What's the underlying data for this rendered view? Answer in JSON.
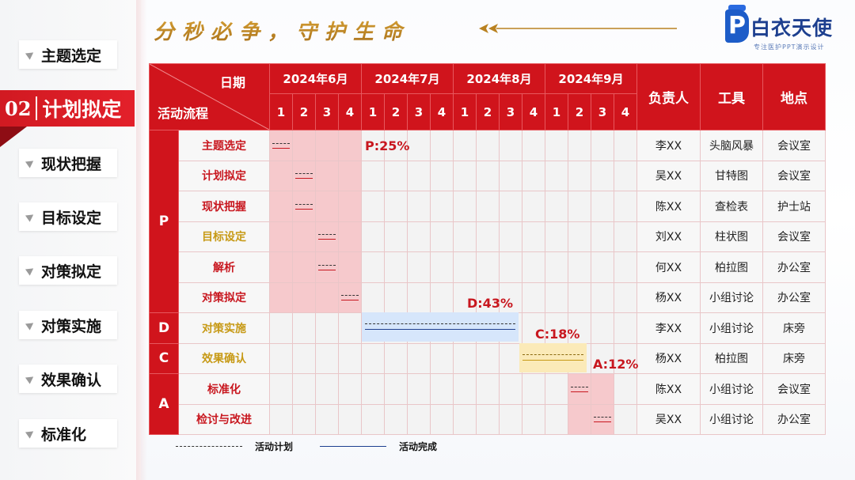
{
  "header": {
    "slogan": "分秒必争，守护生命",
    "logo_mark": "P",
    "logo_name": "白衣天使",
    "logo_tagline": "专注医护PPT演示设计"
  },
  "sidebar": {
    "items": [
      {
        "label": "主题选定"
      },
      {
        "label": "计划拟定",
        "number": "02",
        "active": true
      },
      {
        "label": "现状把握"
      },
      {
        "label": "目标设定"
      },
      {
        "label": "对策拟定"
      },
      {
        "label": "对策实施"
      },
      {
        "label": "效果确认"
      },
      {
        "label": "标准化"
      }
    ]
  },
  "gantt": {
    "corner_date": "日期",
    "corner_flow": "活动流程",
    "months": [
      "2024年6月",
      "2024年7月",
      "2024年8月",
      "2024年9月"
    ],
    "weeks": [
      "1",
      "2",
      "3",
      "4"
    ],
    "columns": [
      "负责人",
      "工具",
      "地点"
    ],
    "phases": [
      {
        "label": "P",
        "rows": 6
      },
      {
        "label": "D",
        "rows": 1
      },
      {
        "label": "C",
        "rows": 1
      },
      {
        "label": "A",
        "rows": 2
      }
    ],
    "rows": [
      {
        "activity": "主题选定",
        "owner": "李XX",
        "tool": "头脑风暴",
        "place": "会议室",
        "color": "red"
      },
      {
        "activity": "计划拟定",
        "owner": "吴XX",
        "tool": "甘特图",
        "place": "会议室",
        "color": "red"
      },
      {
        "activity": "现状把握",
        "owner": "陈XX",
        "tool": "查检表",
        "place": "护士站",
        "color": "red"
      },
      {
        "activity": "目标设定",
        "owner": "刘XX",
        "tool": "柱状图",
        "place": "会议室",
        "color": "gold"
      },
      {
        "activity": "解析",
        "owner": "何XX",
        "tool": "柏拉图",
        "place": "办公室",
        "color": "red"
      },
      {
        "activity": "对策拟定",
        "owner": "杨XX",
        "tool": "小组讨论",
        "place": "办公室",
        "color": "red"
      },
      {
        "activity": "对策实施",
        "owner": "李XX",
        "tool": "小组讨论",
        "place": "床旁",
        "color": "gold"
      },
      {
        "activity": "效果确认",
        "owner": "杨XX",
        "tool": "柏拉图",
        "place": "床旁",
        "color": "gold"
      },
      {
        "activity": "标准化",
        "owner": "陈XX",
        "tool": "小组讨论",
        "place": "会议室",
        "color": "red"
      },
      {
        "activity": "检讨与改进",
        "owner": "吴XX",
        "tool": "小组讨论",
        "place": "办公室",
        "color": "red"
      }
    ],
    "percentages": {
      "P": "P:25%",
      "D": "D:43%",
      "C": "C:18%",
      "A": "A:12%"
    }
  },
  "legend": {
    "plan": "活动计划",
    "done": "活动完成"
  },
  "colors": {
    "brand_red": "#d0141c",
    "accent_gold": "#c79a16",
    "plan_pink": "#f6c9cc",
    "d_blue": "#d6e6fb",
    "c_yellow": "#fbeab8",
    "logo_blue": "#1d5cc8"
  }
}
